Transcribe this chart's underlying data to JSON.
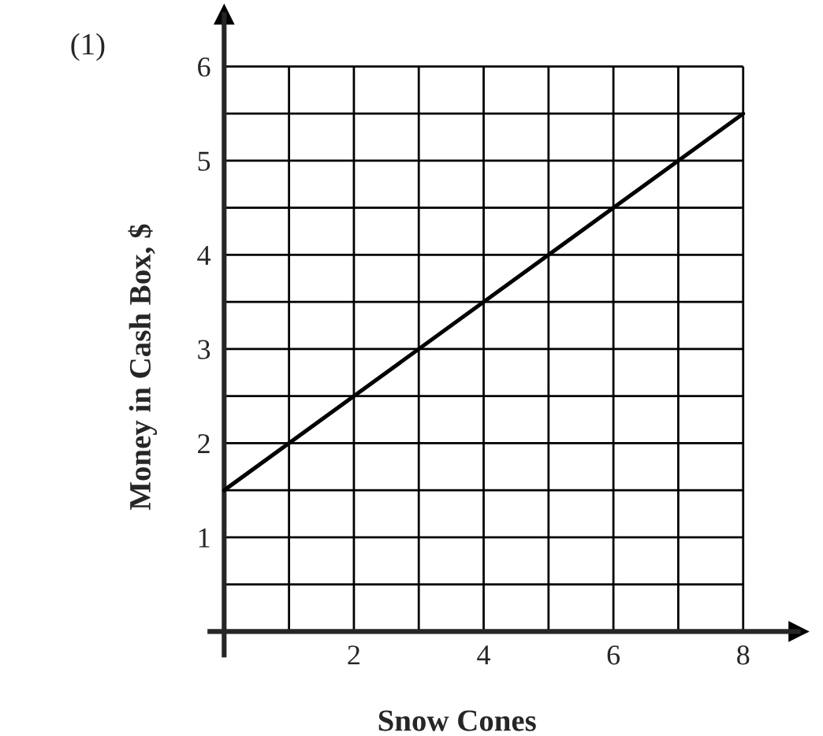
{
  "chart_data": {
    "type": "line",
    "xlabel": "Snow Cones",
    "ylabel": "Money in Cash Box, $",
    "annotations": [
      "(1)"
    ],
    "x": [
      0,
      8
    ],
    "series": [
      {
        "color": "#000000",
        "values": [
          1.5,
          5.5
        ]
      }
    ],
    "xlim": [
      -0.22,
      8.85
    ],
    "ylim": [
      -0.25,
      6.55
    ],
    "xticks": [
      {
        "value": 1,
        "label": null
      },
      2,
      {
        "value": 3,
        "label": null
      },
      4,
      {
        "value": 5,
        "label": null
      },
      6,
      {
        "value": 7,
        "label": null
      },
      8
    ],
    "yticks": [
      {
        "value": 0.5,
        "label": null
      },
      1,
      {
        "value": 1.5,
        "label": null
      },
      2,
      {
        "value": 2.5,
        "label": null
      },
      3,
      {
        "value": 3.5,
        "label": null
      },
      4,
      {
        "value": 4.5,
        "label": null
      },
      5,
      {
        "value": 5.5,
        "label": null
      },
      6
    ],
    "grid": true,
    "marker": "none",
    "line_style": "solid",
    "legend": false
  }
}
